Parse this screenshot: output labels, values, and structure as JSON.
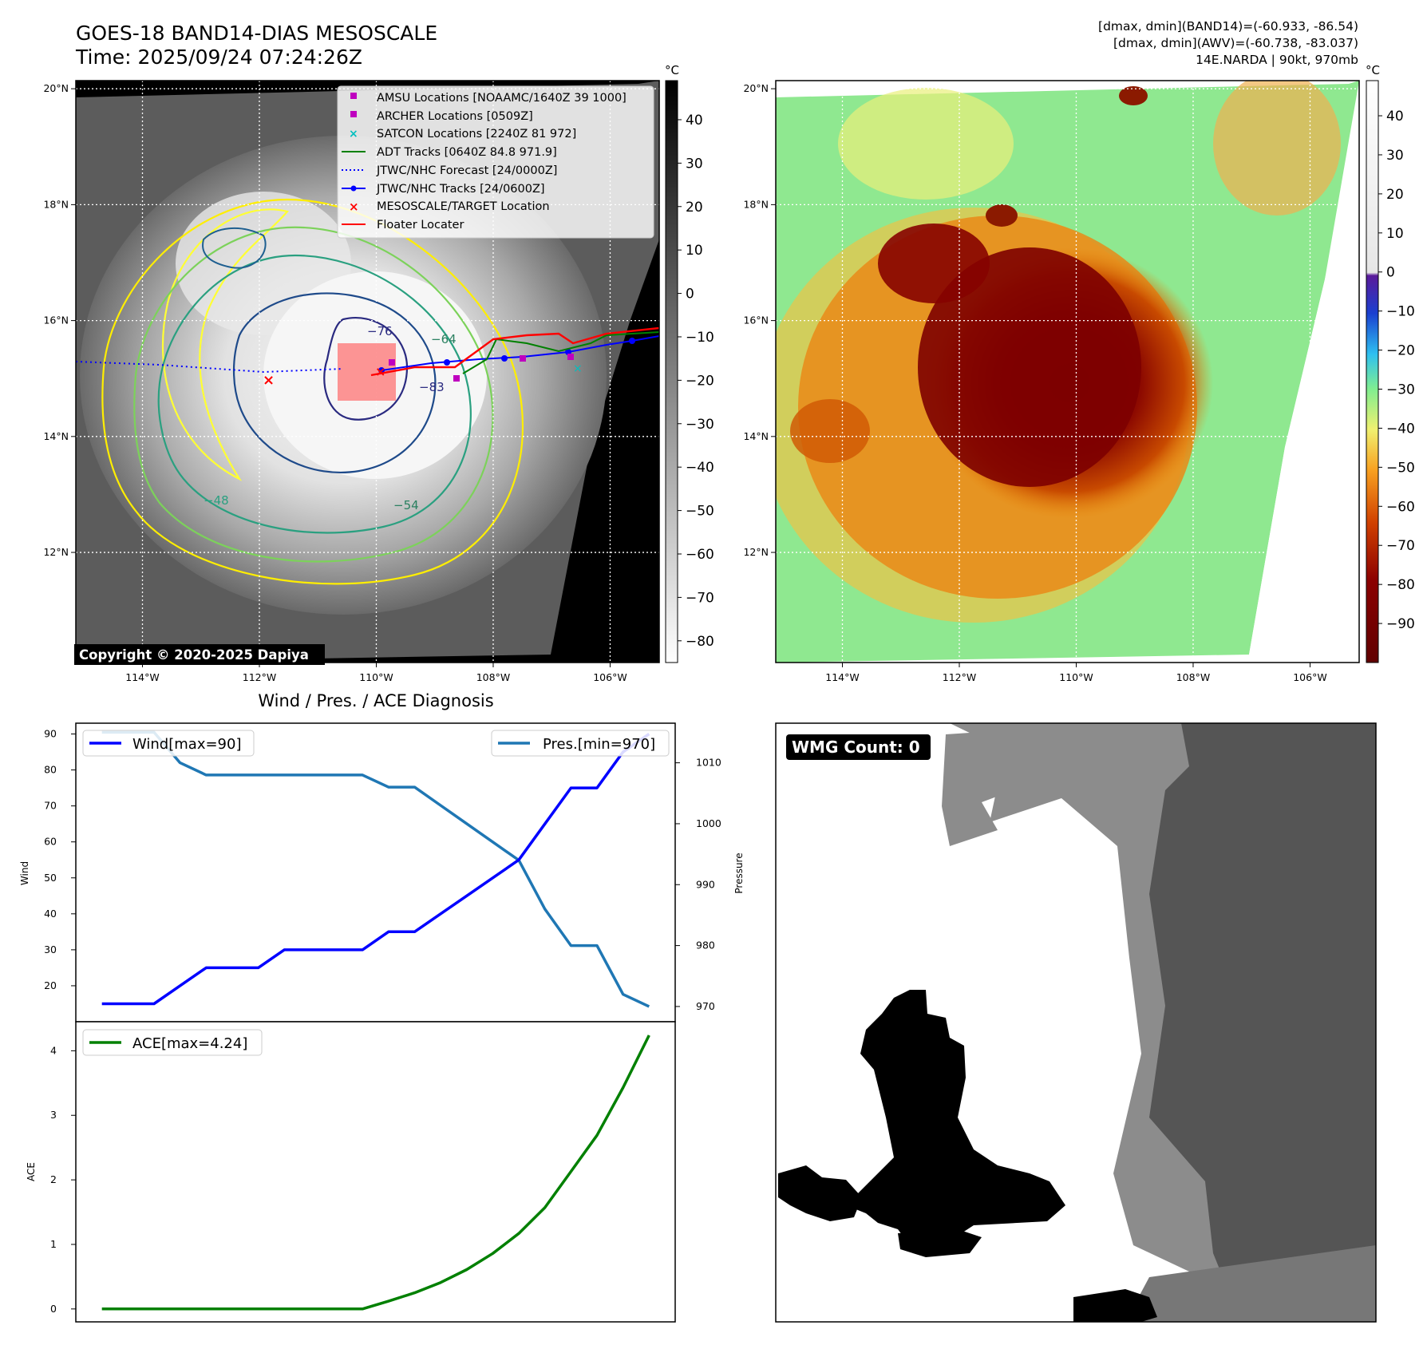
{
  "header": {
    "title_line1": "GOES-18 BAND14-DIAS MESOSCALE",
    "title_line2": "Time: 2025/09/24 07:24:26Z",
    "info_line1": "[dmax, dmin](BAND14)=(-60.933, -86.54)",
    "info_line2": "[dmax, dmin](AWV)=(-60.738, -83.037)",
    "info_line3": "14E.NARDA | 90kt, 970mb"
  },
  "map_axes": {
    "lon_ticks": [
      "114°W",
      "112°W",
      "110°W",
      "108°W",
      "106°W"
    ],
    "lon_values": [
      -114,
      -112,
      -110,
      -108,
      -106
    ],
    "lat_ticks": [
      "20°N",
      "18°N",
      "16°N",
      "14°N",
      "12°N"
    ],
    "lat_values": [
      20,
      18,
      16,
      14,
      12
    ],
    "lon_range": [
      -115.14,
      -105.16
    ],
    "lat_range": [
      10.1,
      20.14
    ]
  },
  "left_map": {
    "copyright": "Copyright © 2020-2025 Dapiya",
    "colorbar_unit": "°C",
    "colorbar_ticks": [
      "40",
      "30",
      "20",
      "10",
      "0",
      "−10",
      "−20",
      "−30",
      "−40",
      "−50",
      "−60",
      "−70",
      "−80"
    ],
    "colorbar_range": [
      -85,
      49
    ],
    "contour_labels": [
      "−76",
      "−54",
      "−64",
      "−83",
      "−48"
    ],
    "legend": [
      {
        "label": "AMSU Locations [NOAAMC/1640Z 39 1000]",
        "marker": "square",
        "color": "#bf00bf"
      },
      {
        "label": "ARCHER Locations [0509Z]",
        "marker": "square",
        "color": "#bf00bf"
      },
      {
        "label": "SATCON Locations [2240Z 81 972]",
        "marker": "x",
        "color": "#00bfbf"
      },
      {
        "label": "ADT Tracks [0640Z 84.8 971.9]",
        "marker": "line",
        "color": "#008000"
      },
      {
        "label": "JTWC/NHC Forecast [24/0000Z]",
        "marker": "dotted",
        "color": "#0000ff"
      },
      {
        "label": "JTWC/NHC Tracks [24/0600Z]",
        "marker": "line-dot",
        "color": "#0000ff"
      },
      {
        "label": "MESOSCALE/TARGET Location",
        "marker": "x",
        "color": "#ff0000"
      },
      {
        "label": "Floater Locater",
        "marker": "line",
        "color": "#ff0000"
      }
    ]
  },
  "right_map": {
    "colorbar_unit": "°C",
    "colorbar_ticks": [
      "40",
      "30",
      "20",
      "10",
      "0",
      "−10",
      "−20",
      "−30",
      "−40",
      "−50",
      "−60",
      "−70",
      "−80",
      "−90"
    ],
    "colorbar_range": [
      -100,
      49
    ]
  },
  "diag": {
    "title": "Wind / Pres. / ACE Diagnosis",
    "wind_label": "Wind",
    "pressure_label": "Pressure",
    "ace_label": "ACE",
    "wind_legend": "Wind[max=90]",
    "pres_legend": "Pres.[min=970]",
    "ace_legend": "ACE[max=4.24]",
    "wind_ticks": [
      "20",
      "30",
      "40",
      "50",
      "60",
      "70",
      "80",
      "90"
    ],
    "pres_ticks": [
      "970",
      "980",
      "990",
      "1000",
      "1010"
    ],
    "ace_ticks": [
      "0",
      "1",
      "2",
      "3",
      "4"
    ],
    "wind_color": "#0000ff",
    "pres_color": "#1f77b4",
    "ace_color": "#008000"
  },
  "wmg": {
    "label": "WMG Count: 0"
  },
  "chart_data": [
    {
      "type": "line",
      "x": [
        0,
        1,
        2,
        3,
        4,
        5,
        6,
        7,
        8,
        9,
        10,
        11,
        12,
        13,
        14,
        15,
        16,
        17,
        18,
        19,
        20,
        21
      ],
      "xlim": [
        -1,
        22
      ],
      "series": [
        {
          "name": "Wind[max=90]",
          "axis": "left",
          "values": [
            15,
            15,
            15,
            20,
            25,
            25,
            25,
            30,
            30,
            30,
            30,
            35,
            35,
            40,
            45,
            50,
            55,
            65,
            75,
            75,
            85,
            90
          ]
        },
        {
          "name": "Pres.[min=970]",
          "axis": "right",
          "values": [
            1015,
            1015,
            1015,
            1010,
            1008,
            1008,
            1008,
            1008,
            1008,
            1008,
            1008,
            1006,
            1006,
            1003,
            1000,
            997,
            994,
            986,
            980,
            980,
            972,
            970
          ]
        }
      ],
      "ylim": [
        10,
        93
      ],
      "ylim_right": [
        967.5,
        1016.5
      ]
    },
    {
      "type": "line",
      "x": [
        0,
        1,
        2,
        3,
        4,
        5,
        6,
        7,
        8,
        9,
        10,
        11,
        12,
        13,
        14,
        15,
        16,
        17,
        18,
        19,
        20,
        21
      ],
      "xlim": [
        -1,
        22
      ],
      "series": [
        {
          "name": "ACE[max=4.24]",
          "values": [
            0,
            0,
            0,
            0,
            0,
            0,
            0,
            0,
            0,
            0,
            0,
            0.12,
            0.25,
            0.41,
            0.61,
            0.86,
            1.17,
            1.57,
            2.13,
            2.69,
            3.43,
            4.24
          ]
        }
      ],
      "ylim": [
        -0.2,
        4.45
      ]
    }
  ]
}
